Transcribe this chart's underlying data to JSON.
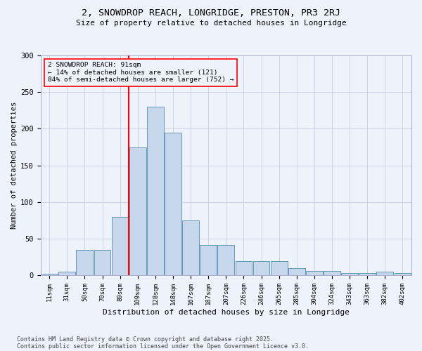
{
  "title": "2, SNOWDROP REACH, LONGRIDGE, PRESTON, PR3 2RJ",
  "subtitle": "Size of property relative to detached houses in Longridge",
  "xlabel": "Distribution of detached houses by size in Longridge",
  "ylabel": "Number of detached properties",
  "bar_color": "#c8d8ec",
  "bar_edge_color": "#6699bb",
  "categories": [
    "11sqm",
    "31sqm",
    "50sqm",
    "70sqm",
    "89sqm",
    "109sqm",
    "128sqm",
    "148sqm",
    "167sqm",
    "187sqm",
    "207sqm",
    "226sqm",
    "246sqm",
    "265sqm",
    "285sqm",
    "304sqm",
    "324sqm",
    "343sqm",
    "363sqm",
    "382sqm",
    "402sqm"
  ],
  "values": [
    2,
    5,
    35,
    35,
    80,
    175,
    230,
    195,
    75,
    42,
    42,
    20,
    20,
    20,
    10,
    6,
    6,
    3,
    3,
    5,
    3
  ],
  "annotation_text": "2 SNOWDROP REACH: 91sqm\n← 14% of detached houses are smaller (121)\n84% of semi-detached houses are larger (752) →",
  "ylim": [
    0,
    300
  ],
  "yticks": [
    0,
    50,
    100,
    150,
    200,
    250,
    300
  ],
  "footer_line1": "Contains HM Land Registry data © Crown copyright and database right 2025.",
  "footer_line2": "Contains public sector information licensed under the Open Government Licence v3.0.",
  "bg_color": "#eef2fb",
  "grid_color": "#c8cce0"
}
